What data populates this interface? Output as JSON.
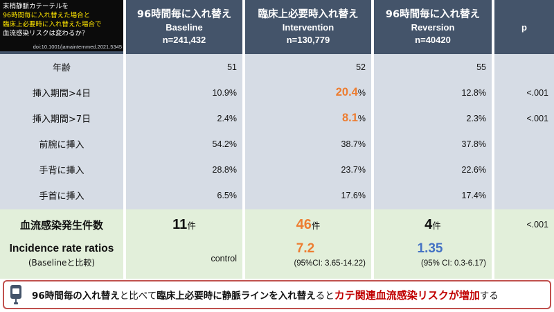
{
  "title": {
    "line1": "末梢静脈カテーテルを",
    "line2": "96時間毎に入れ替えた場合と",
    "line3": "臨床上必要時に入れ替えた場合で",
    "line4": "血流感染リスクは変わるか？",
    "doi": "doi:10.1001/jamainternmed.2021.5345"
  },
  "columns": {
    "baseline": {
      "jp": "96時間毎に入れ替え",
      "en": "Baseline",
      "n": "n=241,432"
    },
    "intervention": {
      "jp": "臨床上必要時入れ替え",
      "en": "Intervention",
      "n": "n=130,779"
    },
    "reversion": {
      "jp": "96時間毎に入れ替え",
      "en": "Reversion",
      "n": "n=40420"
    },
    "p": "p"
  },
  "rows": [
    {
      "label": "年齢",
      "baseline": "51",
      "intervention": "52",
      "reversion": "55",
      "p": ""
    },
    {
      "label": "挿入期間>4日",
      "baseline": "10.9%",
      "intervention_value": "20.4",
      "intervention_unit": "%",
      "reversion": "12.8%",
      "p": "<.001"
    },
    {
      "label": "挿入期間>7日",
      "baseline": "2.4%",
      "intervention_value": "8.1",
      "intervention_unit": "%",
      "reversion": "2.3%",
      "p": "<.001"
    },
    {
      "label": "前腕に挿入",
      "baseline": "54.2%",
      "intervention": "38.7%",
      "reversion": "37.8%",
      "p": ""
    },
    {
      "label": "手背に挿入",
      "baseline": "28.8%",
      "intervention": "23.7%",
      "reversion": "22.6%",
      "p": ""
    },
    {
      "label": "手首に挿入",
      "baseline": "6.5%",
      "intervention": "17.6%",
      "reversion": "17.4%",
      "p": ""
    }
  ],
  "infections": {
    "label": "血流感染発生件数",
    "baseline_value": "11",
    "intervention_value": "46",
    "reversion_value": "4",
    "unit": "件",
    "p": "<.001"
  },
  "irr": {
    "label": "Incidence rate ratios",
    "sublabel": "(Baselineと比較)",
    "baseline": "control",
    "intervention_value": "7.2",
    "intervention_ci": "(95%CI: 3.65-14.22)",
    "reversion_value": "1.35",
    "reversion_ci": "(95% CI: 0.3-6.17)"
  },
  "footer": {
    "icon": "iv-bag-icon",
    "seg1": "96時間毎の入れ替え",
    "seg2": "と比べて",
    "seg3": "臨床上必要時に静脈ラインを入れ替え",
    "seg4": "ると",
    "seg5": "カテ関連血流感染リスクが増加",
    "seg6": "する"
  },
  "colors": {
    "header_bg": "#44546a",
    "title_bg": "#0b0b0b",
    "title_highlight": "#ffe600",
    "table_blue": "#d6dce5",
    "table_green": "#e2efda",
    "accent_orange": "#ed7d31",
    "accent_blue": "#4472c4",
    "accent_red": "#c00000",
    "footer_border": "#c0504d"
  }
}
